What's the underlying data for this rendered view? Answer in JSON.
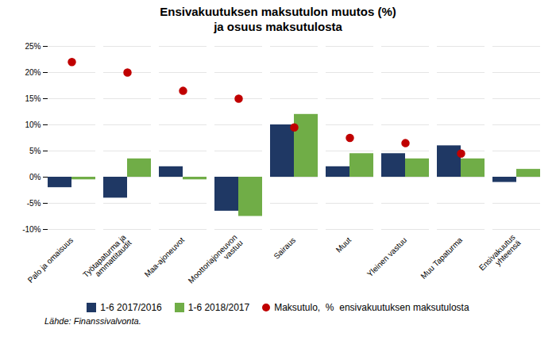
{
  "chart_data": {
    "type": "bar",
    "title": "Ensivakuutuksen maksutulon muutos (%)\nja osuus maksutulosta",
    "categories": [
      "Palo ja omaisuus",
      "Työtapaturma ja\nammattitaudit",
      "Maa-ajoneuvot",
      "Moottoriajoneuvon\nvastuu",
      "Sairaus",
      "Muut",
      "Yleinen vastuu",
      "Muu Tapaturma",
      "Ensivakuutus\nyhteensä"
    ],
    "series": [
      {
        "name": "1-6 2017/2016",
        "color": "#1F3864",
        "values": [
          -2.0,
          -4.0,
          2.0,
          -6.5,
          10.0,
          2.0,
          4.5,
          6.0,
          -1.0
        ]
      },
      {
        "name": "1-6 2018/2017",
        "color": "#70AD47",
        "values": [
          -0.5,
          3.5,
          -0.5,
          -7.5,
          12.0,
          4.5,
          3.5,
          3.5,
          1.5
        ]
      },
      {
        "name": "Maksutulo,  %  ensivakuutuksen maksutulosta",
        "type": "scatter",
        "marker": "o",
        "color": "#C00000",
        "values": [
          22.0,
          20.0,
          16.5,
          15.0,
          9.5,
          7.5,
          6.5,
          4.5,
          null
        ]
      }
    ],
    "ylim": [
      -10,
      25
    ],
    "yticks": [
      {
        "value": -10,
        "label": "-10%"
      },
      {
        "value": -5,
        "label": "-5%"
      },
      {
        "value": 0,
        "label": "0%"
      },
      {
        "value": 5,
        "label": "5%"
      },
      {
        "value": 10,
        "label": "10%"
      },
      {
        "value": 15,
        "label": "15%"
      },
      {
        "value": 20,
        "label": "20%"
      },
      {
        "value": 25,
        "label": "25%"
      }
    ],
    "grid": true,
    "legend": "bottom",
    "caption": "Lähde: Finanssivalvonta."
  }
}
